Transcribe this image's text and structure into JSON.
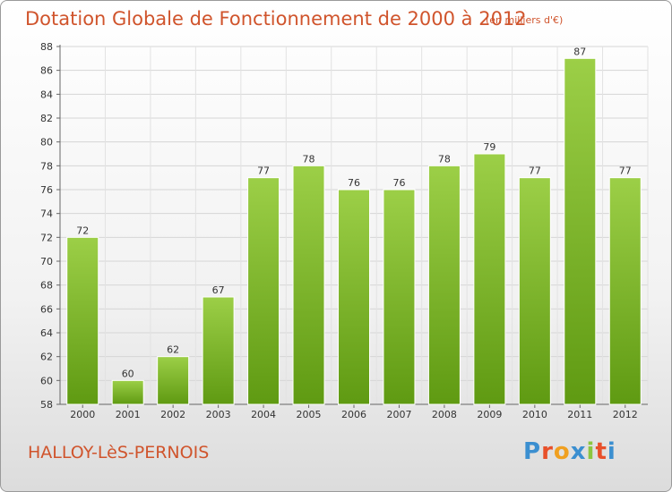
{
  "header": {
    "title": "Dotation Globale de Fonctionnement de 2000 à 2012",
    "subtitle": "(en milliers d'€)"
  },
  "footer": {
    "town": "HALLOY-LèS-PERNOIS",
    "logo_letters": [
      "P",
      "r",
      "o",
      "x",
      "i",
      "t",
      "i"
    ]
  },
  "colors": {
    "title": "#d0542c",
    "bar_light": "#9ccf47",
    "bar_dark": "#5f9a12",
    "logo": [
      "#3b8fd0",
      "#e8502a",
      "#f0a020",
      "#3b8fd0",
      "#8cc63f",
      "#e8502a",
      "#3b8fd0"
    ]
  },
  "chart_data": {
    "type": "bar",
    "categories": [
      "2000",
      "2001",
      "2002",
      "2003",
      "2004",
      "2005",
      "2006",
      "2007",
      "2008",
      "2009",
      "2010",
      "2011",
      "2012"
    ],
    "values": [
      72,
      60,
      62,
      67,
      77,
      78,
      76,
      76,
      78,
      79,
      77,
      87,
      77
    ],
    "title": "Dotation Globale de Fonctionnement de 2000 à 2012",
    "subtitle": "(en milliers d'€)",
    "ylim": [
      58,
      88
    ],
    "yticks": [
      58,
      60,
      62,
      64,
      66,
      68,
      70,
      72,
      74,
      76,
      78,
      80,
      82,
      84,
      86,
      88
    ],
    "grid": true,
    "data_labels": true
  }
}
